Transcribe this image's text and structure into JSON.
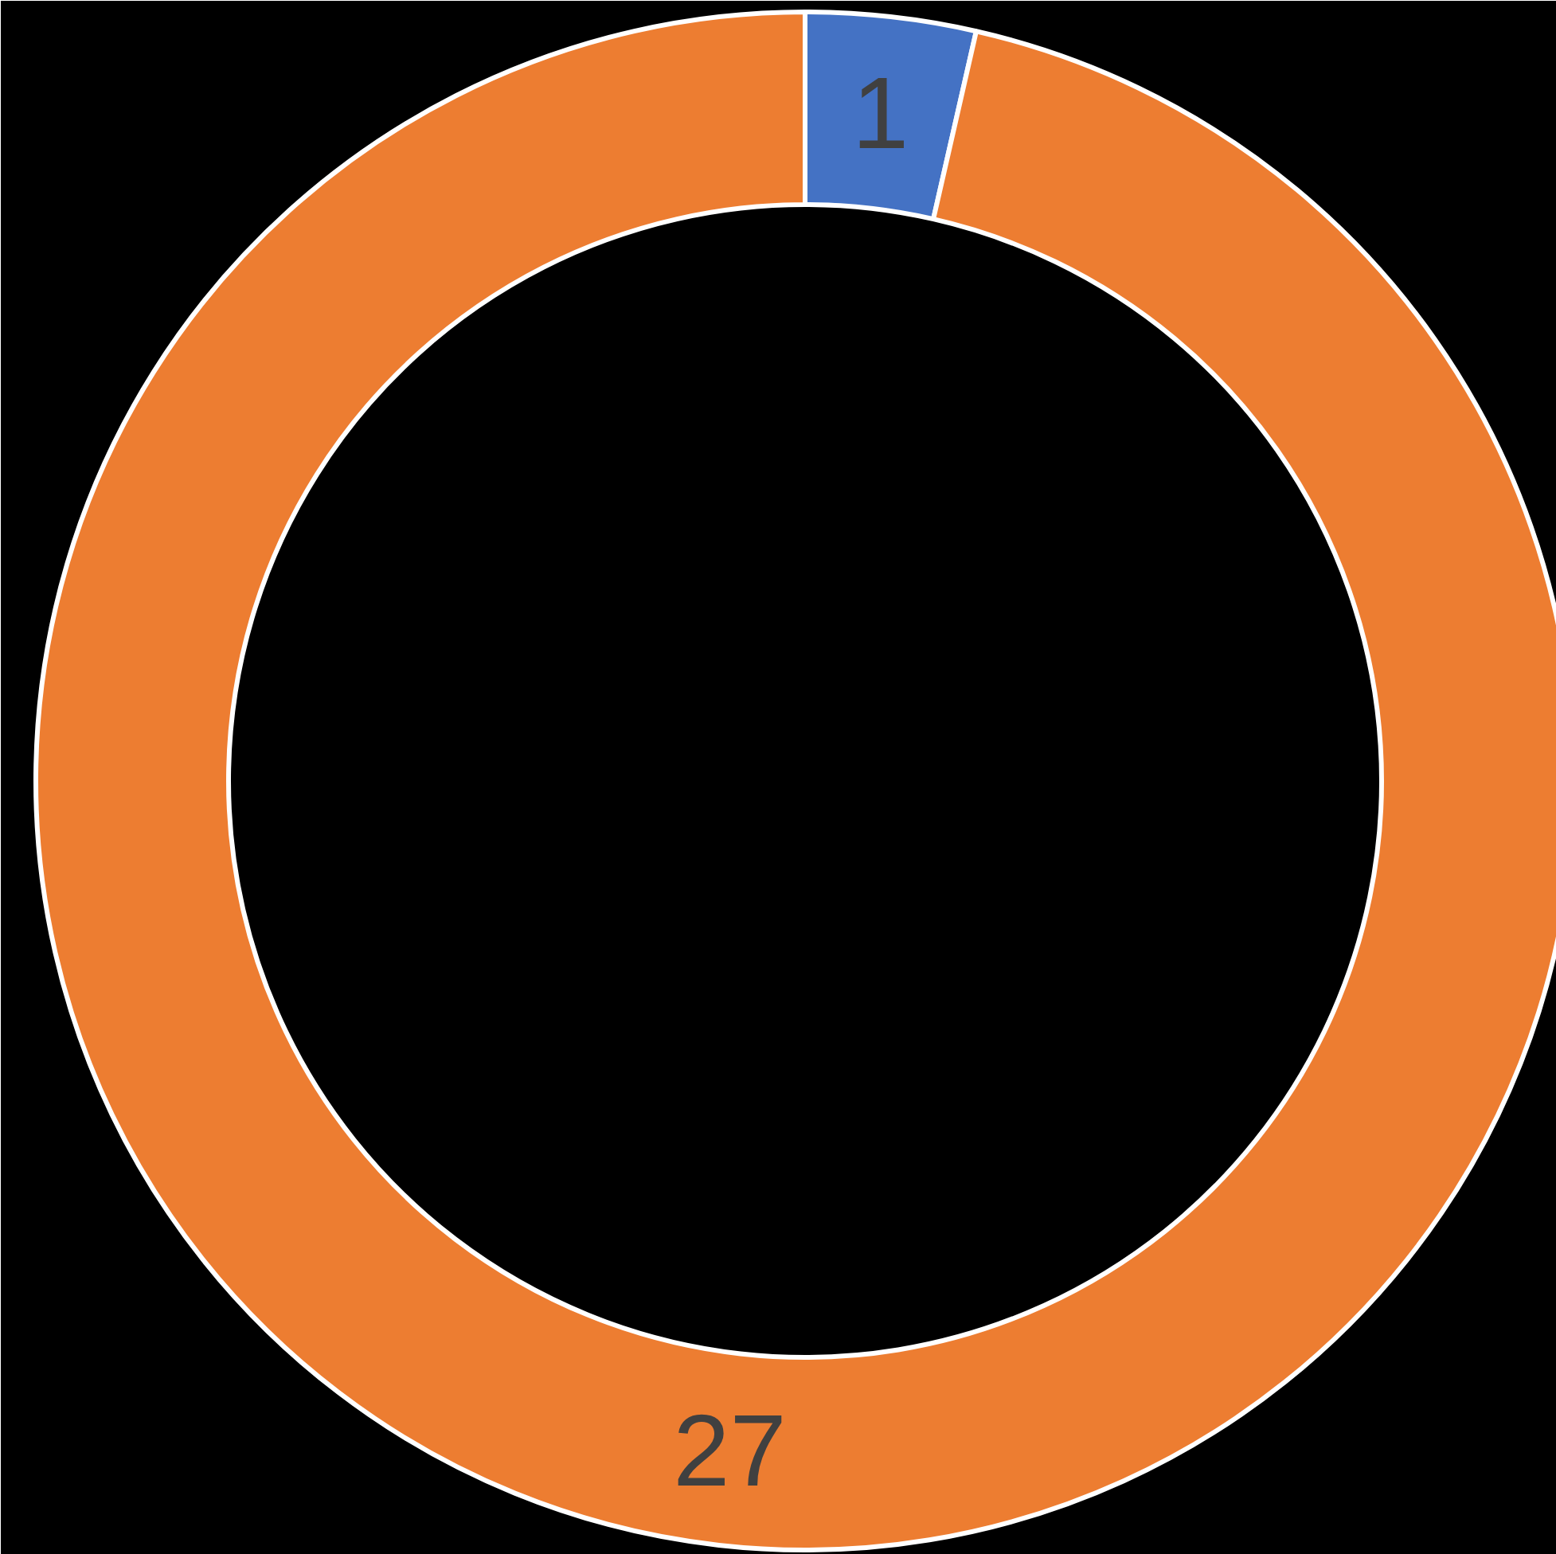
{
  "chart_data": {
    "type": "donut",
    "categories": [
      null,
      null
    ],
    "values": [
      1,
      27
    ],
    "colors": [
      "#4472c4",
      "#ed7d31"
    ],
    "data_labels": true
  }
}
